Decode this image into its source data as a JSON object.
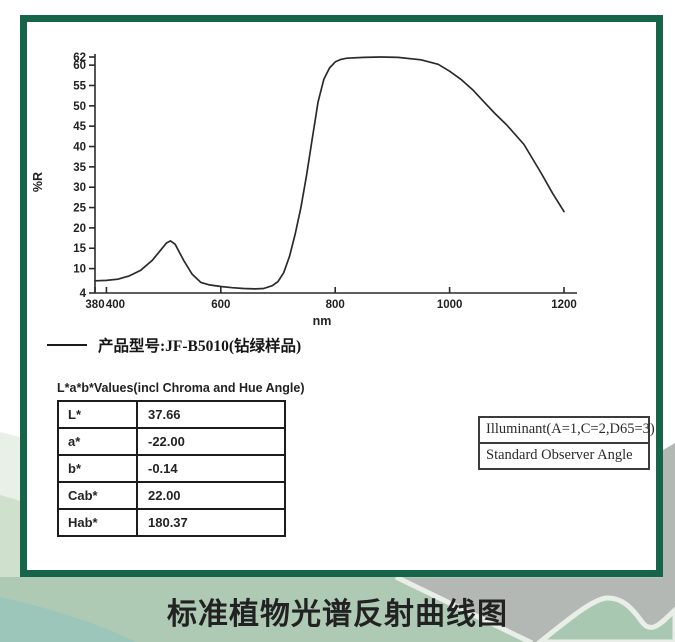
{
  "page": {
    "bottom_title": "标准植物光谱反射曲线图"
  },
  "colors": {
    "card_border": "#16654a",
    "curve": "#2a2a2a",
    "band_green": "#aecab5",
    "mountain_gray": "#b3b8b4",
    "mountain_green": "#a9c8b2",
    "ridge_white": "#e9efe8",
    "teal_corner": "#9dc6bb",
    "hill_light": "#e9f0e7",
    "hill_mid": "#cfe0cd"
  },
  "legend": {
    "label": "产品型号:JF-B5010(钻绿样品)"
  },
  "lab_table": {
    "title": "L*a*b*Values(incl Chroma and Hue Angle)",
    "rows": [
      {
        "label": "L*",
        "value": "37.66"
      },
      {
        "label": "a*",
        "value": "-22.00"
      },
      {
        "label": "b*",
        "value": "-0.14"
      },
      {
        "label": "Cab*",
        "value": "22.00"
      },
      {
        "label": "Hab*",
        "value": "180.37"
      }
    ]
  },
  "settings_box": {
    "rows": [
      "Illuminant(A=1,C=2,D65=3)",
      "Standard Observer Angle"
    ]
  },
  "chart_data": {
    "type": "line",
    "title": "",
    "xlabel": "nm",
    "ylabel": "%R",
    "xlim": [
      380,
      1200
    ],
    "ylim": [
      4,
      62
    ],
    "x_ticks": [
      380,
      400,
      600,
      800,
      1000,
      1200
    ],
    "y_ticks": [
      62,
      60,
      55,
      50,
      45,
      40,
      35,
      30,
      25,
      20,
      15,
      10,
      4
    ],
    "grid": false,
    "legend_position": "below-left",
    "series": [
      {
        "name": "产品型号:JF-B5010(钻绿样品)",
        "color": "#2a2a2a",
        "x": [
          380,
          400,
          420,
          440,
          460,
          480,
          495,
          505,
          512,
          520,
          535,
          550,
          565,
          580,
          600,
          620,
          640,
          660,
          675,
          690,
          700,
          710,
          720,
          730,
          740,
          750,
          760,
          770,
          780,
          790,
          800,
          810,
          820,
          850,
          880,
          910,
          950,
          980,
          1000,
          1020,
          1040,
          1060,
          1080,
          1100,
          1130,
          1160,
          1180,
          1200
        ],
        "y": [
          7.0,
          7.1,
          7.4,
          8.2,
          9.6,
          12.0,
          14.6,
          16.3,
          16.8,
          16.0,
          12.0,
          8.6,
          6.6,
          6.0,
          5.6,
          5.3,
          5.1,
          5.0,
          5.1,
          5.8,
          6.8,
          9.0,
          13.0,
          18.5,
          25.0,
          33.0,
          42.0,
          51.0,
          56.5,
          59.3,
          60.8,
          61.4,
          61.7,
          61.9,
          62.0,
          61.9,
          61.3,
          60.2,
          58.5,
          56.5,
          54.0,
          51.0,
          48.0,
          45.3,
          40.5,
          33.5,
          28.5,
          24.0
        ]
      }
    ]
  }
}
